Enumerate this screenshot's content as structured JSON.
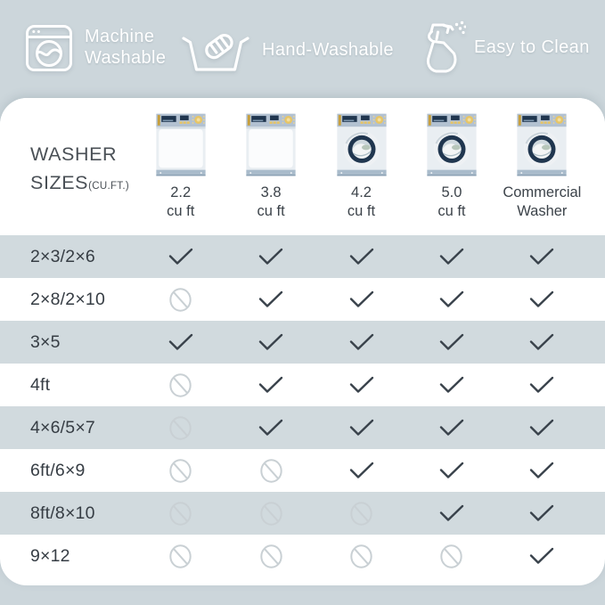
{
  "banner": {
    "items": [
      {
        "icon": "washing-machine-icon",
        "label": "Machine Washable"
      },
      {
        "icon": "hand-wash-icon",
        "label": "Hand-Washable"
      },
      {
        "icon": "spray-bottle-icon",
        "label": "Easy to Clean"
      }
    ]
  },
  "table": {
    "title_line1": "WASHER",
    "title_line2": "SIZES",
    "title_suffix": "(CU.FT.)",
    "columns": [
      {
        "label_line1": "2.2",
        "label_line2": "cu ft",
        "washer_style": "closed-door"
      },
      {
        "label_line1": "3.8",
        "label_line2": "cu ft",
        "washer_style": "closed-door"
      },
      {
        "label_line1": "4.2",
        "label_line2": "cu ft",
        "washer_style": "porthole"
      },
      {
        "label_line1": "5.0",
        "label_line2": "cu ft",
        "washer_style": "porthole"
      },
      {
        "label_line1": "Commercial",
        "label_line2": "Washer",
        "washer_style": "porthole"
      }
    ]
  },
  "chart_data": {
    "type": "table",
    "title": "WASHER SIZES (CU.FT.)",
    "columns": [
      "2.2 cu ft",
      "3.8 cu ft",
      "4.2 cu ft",
      "5.0 cu ft",
      "Commercial Washer"
    ],
    "row_labels": [
      "2×3/2×6",
      "2×8/2×10",
      "3×5",
      "4ft",
      "4×6/5×7",
      "6ft/6×9",
      "8ft/8×10",
      "9×12"
    ],
    "values": [
      [
        "yes",
        "yes",
        "yes",
        "yes",
        "yes"
      ],
      [
        "no",
        "yes",
        "yes",
        "yes",
        "yes"
      ],
      [
        "yes",
        "yes",
        "yes",
        "yes",
        "yes"
      ],
      [
        "no",
        "yes",
        "yes",
        "yes",
        "yes"
      ],
      [
        "no",
        "yes",
        "yes",
        "yes",
        "yes"
      ],
      [
        "no",
        "no",
        "yes",
        "yes",
        "yes"
      ],
      [
        "no",
        "no",
        "no",
        "yes",
        "yes"
      ],
      [
        "no",
        "no",
        "no",
        "no",
        "yes"
      ]
    ],
    "legend": [
      "Machine Washable",
      "Hand-Washable",
      "Easy to Clean"
    ],
    "notes": "yes = checkmark, no = prohibition symbol; shaded rows alternate starting with first row"
  },
  "icons": {
    "yes": "check-icon",
    "no": "not-allowed-icon"
  },
  "colors": {
    "page_bg": "#ccd6db",
    "card_bg": "#ffffff",
    "row_shaded": "#d1dade",
    "banner_text": "#ffffff",
    "title_text": "#4a5056",
    "label_text": "#363d44",
    "col_label_text": "#3c434a",
    "check": "#39424b",
    "no_symbol": "#c9d0d4",
    "washer_panel": "#b2c1d1",
    "washer_navy": "#20364f",
    "washer_gold": "#e7c566",
    "washer_gold_dark": "#c79f3c",
    "washer_body": "#e9eef2",
    "washer_front": "#fbfcfd",
    "washer_base": "#a9bbcb",
    "washer_base_dark": "#8ba1b4",
    "washer_glass": "#cfd9de",
    "washer_laundry": "#f3f5f6",
    "washer_sage": "#b7c6ba"
  }
}
